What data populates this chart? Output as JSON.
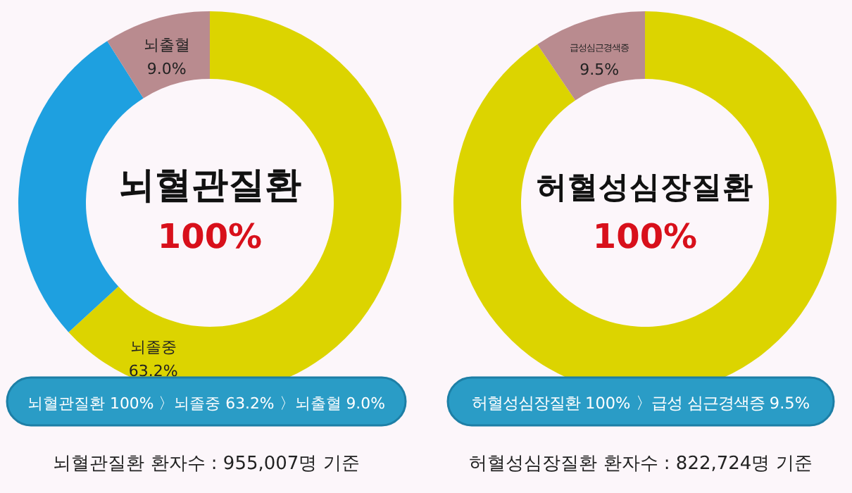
{
  "chart_data": [
    {
      "type": "donut",
      "title": "뇌혈관질환",
      "subtitle": "100%",
      "categories": [
        "뇌졸중",
        null,
        "뇌출혈"
      ],
      "values": [
        63.2,
        27.8,
        9.0
      ],
      "colors": [
        "#dcd400",
        "#1ea0e0",
        "#b98b8f"
      ],
      "value_labels": [
        "63.2%",
        null,
        "9.0%"
      ],
      "annotations": [
        "뇌혈관질환 100% 〉뇌졸중 63.2% 〉뇌출혈 9.0%",
        "뇌혈관질환 환자수 : 955,007명 기준"
      ]
    },
    {
      "type": "donut",
      "title": "허혈성심장질환",
      "subtitle": "100%",
      "categories": [
        null,
        "급성심근경색증"
      ],
      "values": [
        90.5,
        9.5
      ],
      "colors": [
        "#dcd400",
        "#b98b8f"
      ],
      "value_labels": [
        null,
        "9.5%"
      ],
      "annotations": [
        "허혈성심장질환 100% 〉급성 심근경색증 9.5%",
        "허혈성심장질환 환자수 : 822,724명 기준"
      ]
    }
  ]
}
